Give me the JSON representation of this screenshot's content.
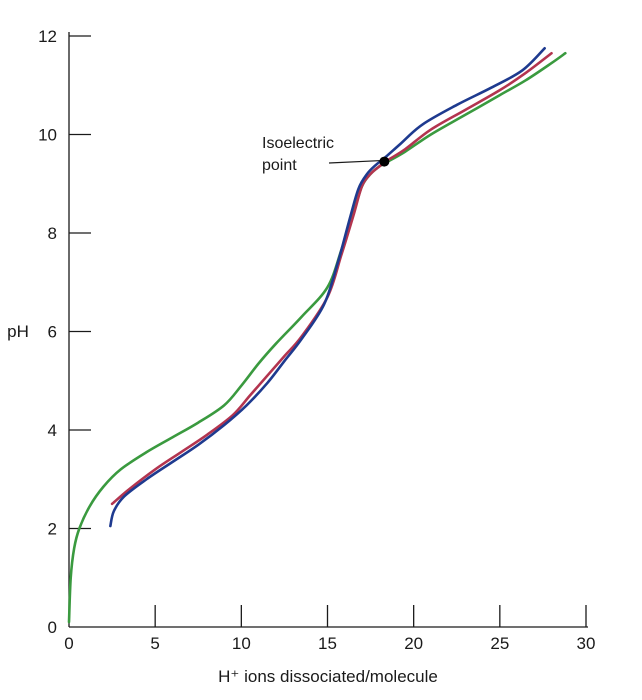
{
  "chart_data": {
    "type": "line",
    "title": "",
    "xlabel": "H⁺ ions dissociated/molecule",
    "ylabel": "pH",
    "xlim": [
      0,
      30
    ],
    "ylim": [
      0,
      12
    ],
    "x_ticks": [
      "0",
      "5",
      "10",
      "15",
      "20",
      "25",
      "30"
    ],
    "y_ticks": [
      "0",
      "2",
      "4",
      "6",
      "8",
      "10",
      "12"
    ],
    "grid": false,
    "legend": "none",
    "series": [
      {
        "color": "#3a9a3f",
        "x": [
          0.0,
          0.1,
          0.3,
          0.6,
          1.2,
          2.0,
          3.0,
          4.5,
          6.0,
          7.5,
          9.0,
          10.0,
          11.0,
          12.0,
          13.5,
          15.0,
          15.8,
          16.5,
          17.0,
          17.5,
          18.0,
          18.5,
          19.5,
          21.0,
          23.0,
          25.0,
          26.5,
          28.0,
          28.8
        ],
        "y": [
          0.1,
          1.0,
          1.6,
          2.0,
          2.45,
          2.85,
          3.2,
          3.55,
          3.85,
          4.15,
          4.5,
          4.9,
          5.35,
          5.75,
          6.3,
          6.9,
          7.65,
          8.4,
          8.95,
          9.2,
          9.35,
          9.45,
          9.65,
          10.0,
          10.4,
          10.8,
          11.1,
          11.45,
          11.65
        ]
      },
      {
        "color": "#b3344f",
        "x": [
          2.5,
          3.5,
          5.0,
          6.5,
          8.0,
          9.5,
          10.5,
          11.5,
          12.5,
          13.5,
          15.0,
          15.8,
          16.5,
          17.0,
          17.5,
          18.0,
          18.5,
          19.5,
          21.0,
          23.0,
          25.0,
          26.5,
          28.0
        ],
        "y": [
          2.5,
          2.8,
          3.2,
          3.55,
          3.9,
          4.3,
          4.7,
          5.1,
          5.5,
          5.9,
          6.7,
          7.55,
          8.35,
          8.95,
          9.2,
          9.35,
          9.48,
          9.7,
          10.1,
          10.5,
          10.9,
          11.25,
          11.65
        ]
      },
      {
        "color": "#1e3a8f",
        "x": [
          2.4,
          2.6,
          3.2,
          4.5,
          6.0,
          7.5,
          9.0,
          10.3,
          11.5,
          12.5,
          13.5,
          14.8,
          15.6,
          16.3,
          16.8,
          17.3,
          17.8,
          18.3,
          19.2,
          20.5,
          22.5,
          24.5,
          26.3,
          27.6
        ],
        "y": [
          2.05,
          2.35,
          2.65,
          3.0,
          3.35,
          3.7,
          4.1,
          4.5,
          4.95,
          5.4,
          5.85,
          6.55,
          7.4,
          8.3,
          8.9,
          9.2,
          9.38,
          9.52,
          9.8,
          10.2,
          10.6,
          10.95,
          11.3,
          11.75
        ]
      }
    ],
    "annotations": [
      {
        "text_lines": [
          "Isoelectric",
          "point"
        ],
        "x": 18.3,
        "y": 9.45,
        "marker": "filled-circle"
      }
    ]
  }
}
